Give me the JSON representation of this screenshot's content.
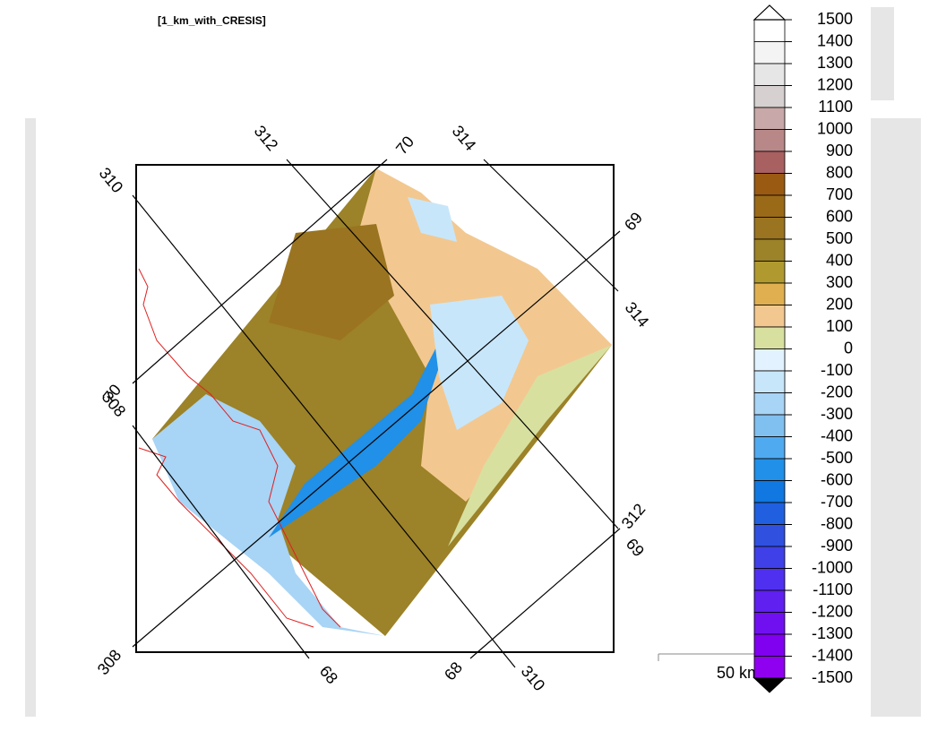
{
  "subtitle": "[1_km_with_CRESIS]",
  "grid_labels": [
    312,
    70,
    314,
    310,
    69,
    314,
    70,
    308,
    68,
    312,
    69,
    308,
    68,
    310
  ],
  "scale_label": "50 km",
  "colorbar": {
    "labels": [
      1500,
      1400,
      1300,
      1200,
      1100,
      1000,
      900,
      800,
      700,
      600,
      500,
      400,
      300,
      200,
      100,
      0,
      -100,
      -200,
      -300,
      -400,
      -500,
      -600,
      -700,
      -800,
      -900,
      -1000,
      -1100,
      -1200,
      -1300,
      -1400,
      -1500
    ],
    "colors": [
      "#ffffff",
      "#f4f4f4",
      "#e6e6e6",
      "#d6d0d0",
      "#c8a8a8",
      "#b88888",
      "#a86060",
      "#9a5a12",
      "#9a6a18",
      "#9a7420",
      "#9c8228",
      "#b09a30",
      "#e0b050",
      "#f2c890",
      "#d8e0a0",
      "#e2f2ff",
      "#c8e6fa",
      "#a8d4f5",
      "#80c0f0",
      "#50aaf0",
      "#2090e8",
      "#1078e0",
      "#2060e0",
      "#3050e0",
      "#4040e8",
      "#5030f0",
      "#6020f0",
      "#7010f0",
      "#8000f0",
      "#9000f0"
    ],
    "top_color": "#ffffff",
    "bottom_color": "#000000"
  }
}
